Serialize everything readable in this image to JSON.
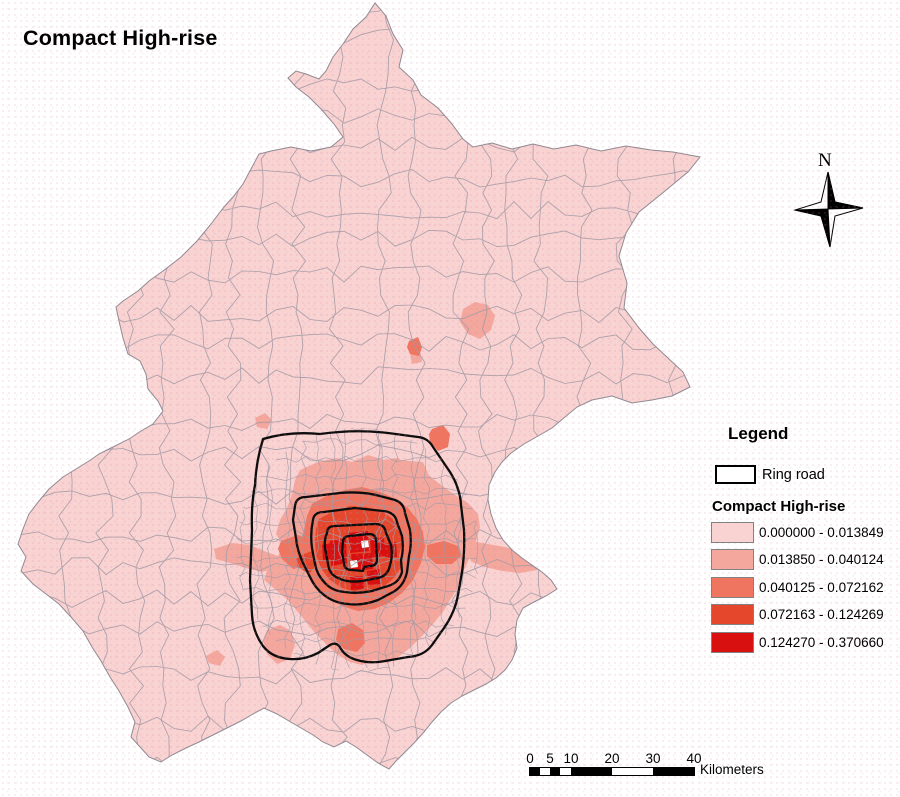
{
  "title": "Compact High-rise",
  "north_arrow_label": "N",
  "legend": {
    "heading": "Legend",
    "ring_road": {
      "label": "Ring road"
    },
    "layer": {
      "heading": "Compact High-rise",
      "classes": [
        {
          "range": "0.000000 - 0.013849",
          "color": "#F9D2D2"
        },
        {
          "range": "0.013850 - 0.040124",
          "color": "#F4A79D"
        },
        {
          "range": "0.040125 - 0.072162",
          "color": "#EF7560"
        },
        {
          "range": "0.072163 - 0.124269",
          "color": "#E4472C"
        },
        {
          "range": "0.124270 - 0.370660",
          "color": "#D81010"
        }
      ]
    }
  },
  "scale_bar": {
    "tick_labels": [
      "0",
      "5",
      "10",
      "20",
      "30",
      "40"
    ],
    "unit": "Kilometers"
  },
  "map_colors": {
    "ring_road_line": "#0d0d0d",
    "township_border": "#a29aa4",
    "municipal_border": "#8f8a92"
  }
}
